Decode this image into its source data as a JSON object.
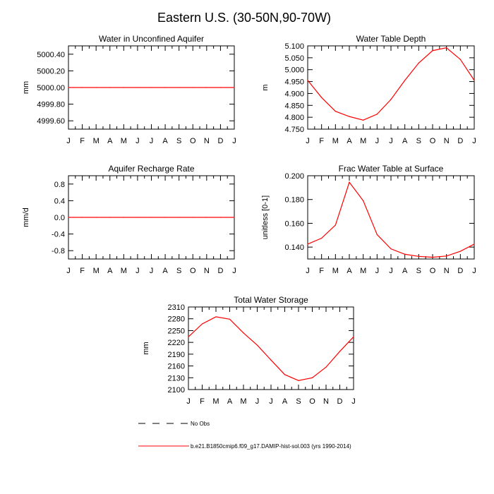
{
  "figure": {
    "title": "Eastern U.S. (30-50N,90-70W)"
  },
  "legend": {
    "items": [
      {
        "label": "No Obs",
        "style": "dashed",
        "color": "#000000"
      },
      {
        "label": "b.e21.B1850cmip6.f09_g17.DAMIP-hist-sol.003 (yrs 1990-2014)",
        "style": "solid",
        "color": "#ff0000"
      }
    ]
  },
  "colors": {
    "series": "#ff0000",
    "axis": "#000000"
  },
  "chart_data": [
    {
      "type": "line",
      "title": "Water in Unconfined Aquifer",
      "xlabel": "",
      "ylabel": "mm",
      "x": [
        "J",
        "F",
        "M",
        "A",
        "M",
        "J",
        "J",
        "A",
        "S",
        "O",
        "N",
        "D",
        "J"
      ],
      "series": [
        {
          "values": [
            5000,
            5000,
            5000,
            5000,
            5000,
            5000,
            5000,
            5000,
            5000,
            5000,
            5000,
            5000,
            5000
          ]
        }
      ],
      "ylim": [
        4999.5,
        5000.5
      ],
      "yticks": [
        4999.6,
        4999.8,
        5000.0,
        5000.2,
        5000.4
      ],
      "ytick_labels": [
        "4999.60",
        "4999.80",
        "5000.00",
        "5000.20",
        "5000.40"
      ]
    },
    {
      "type": "line",
      "title": "Water Table Depth",
      "xlabel": "",
      "ylabel": "m",
      "x": [
        "J",
        "F",
        "M",
        "A",
        "M",
        "J",
        "J",
        "A",
        "S",
        "O",
        "N",
        "D",
        "J"
      ],
      "series": [
        {
          "values": [
            4.955,
            4.883,
            4.825,
            4.803,
            4.788,
            4.813,
            4.875,
            4.955,
            5.028,
            5.08,
            5.092,
            5.043,
            4.955
          ]
        }
      ],
      "ylim": [
        4.75,
        5.1
      ],
      "yticks": [
        4.75,
        4.8,
        4.85,
        4.9,
        4.95,
        5.0,
        5.05,
        5.1
      ],
      "ytick_labels": [
        "4.750",
        "4.800",
        "4.850",
        "4.900",
        "4.950",
        "5.000",
        "5.050",
        "5.100"
      ]
    },
    {
      "type": "line",
      "title": "Aquifer Recharge Rate",
      "xlabel": "",
      "ylabel": "mm/d",
      "x": [
        "J",
        "F",
        "M",
        "A",
        "M",
        "J",
        "J",
        "A",
        "S",
        "O",
        "N",
        "D",
        "J"
      ],
      "series": [
        {
          "values": [
            0,
            0,
            0,
            0,
            0,
            0,
            0,
            0,
            0,
            0,
            0,
            0,
            0
          ]
        }
      ],
      "ylim": [
        -1.0,
        1.0
      ],
      "yticks": [
        -0.8,
        -0.4,
        0.0,
        0.4,
        0.8
      ],
      "ytick_labels": [
        "-0.8",
        "-0.4",
        "0.0",
        "0.4",
        "0.8"
      ]
    },
    {
      "type": "line",
      "title": "Frac Water Table at Surface",
      "xlabel": "",
      "ylabel": "unitless [0-1]",
      "x": [
        "J",
        "F",
        "M",
        "A",
        "M",
        "J",
        "J",
        "A",
        "S",
        "O",
        "N",
        "D",
        "J"
      ],
      "series": [
        {
          "values": [
            0.1425,
            0.1475,
            0.1585,
            0.1945,
            0.179,
            0.1505,
            0.1385,
            0.134,
            0.1322,
            0.1315,
            0.1325,
            0.1365,
            0.1425
          ]
        }
      ],
      "ylim": [
        0.13,
        0.2
      ],
      "yticks": [
        0.14,
        0.16,
        0.18,
        0.2
      ],
      "ytick_labels": [
        "0.140",
        "0.160",
        "0.180",
        "0.200"
      ]
    },
    {
      "type": "line",
      "title": "Total Water Storage",
      "xlabel": "",
      "ylabel": "mm",
      "x": [
        "J",
        "F",
        "M",
        "A",
        "M",
        "J",
        "J",
        "A",
        "S",
        "O",
        "N",
        "D",
        "J"
      ],
      "series": [
        {
          "values": [
            2234,
            2267,
            2285,
            2279,
            2244,
            2213,
            2175,
            2138,
            2123,
            2130,
            2157,
            2197,
            2234
          ]
        }
      ],
      "ylim": [
        2100,
        2310
      ],
      "yticks": [
        2100,
        2130,
        2160,
        2190,
        2220,
        2250,
        2280,
        2310
      ],
      "ytick_labels": [
        "2100",
        "2130",
        "2160",
        "2190",
        "2220",
        "2250",
        "2280",
        "2310"
      ]
    }
  ]
}
